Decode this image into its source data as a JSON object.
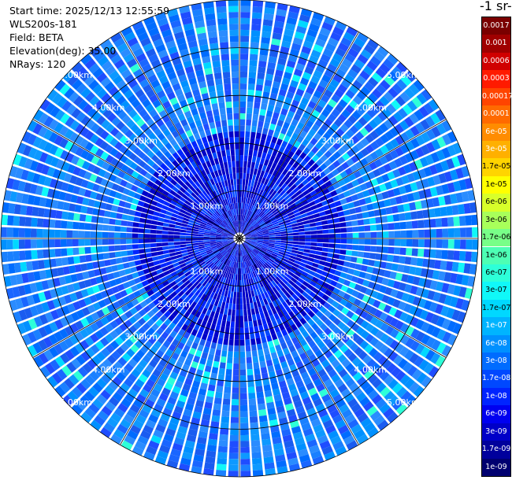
{
  "info": {
    "start_time": "Start time: 2025/12/13 12:55:59",
    "device": "WLS200s-181",
    "field": "Field: BETA",
    "elevation": "Elevation(deg): 35.00",
    "nrays": "NRays: 120"
  },
  "colorbar": {
    "unit_title": "-1 sr-",
    "labels": [
      "0.0017",
      "0.001",
      "0.0006",
      "0.0003",
      "0.00017",
      "0.0001",
      "6e-05",
      "3e-05",
      "1.7e-05",
      "1e-05",
      "6e-06",
      "3e-06",
      "1.7e-06",
      "1e-06",
      "6e-07",
      "3e-07",
      "1.7e-07",
      "1e-07",
      "6e-08",
      "3e-08",
      "1.7e-08",
      "1e-08",
      "6e-09",
      "3e-09",
      "1.7e-09",
      "1e-09"
    ],
    "colors": [
      "#7a0000",
      "#a00000",
      "#d00000",
      "#ff1a00",
      "#ff4400",
      "#ff6a00",
      "#ff8c00",
      "#ffb000",
      "#ffd400",
      "#ffff00",
      "#d8ff2a",
      "#a8ff5a",
      "#78ff88",
      "#4dffb4",
      "#2dffd8",
      "#10f8f8",
      "#00d8ff",
      "#00b4ff",
      "#0090ff",
      "#006cff",
      "#0048ff",
      "#0024ff",
      "#0000f0",
      "#0000c8",
      "#00009c",
      "#000070"
    ]
  },
  "chart_data": {
    "type": "heatmap",
    "projection": "polar PPI scan",
    "title": "",
    "nrays": 120,
    "elevation_deg": 35.0,
    "range_rings_km": [
      1,
      2,
      3,
      4,
      5
    ],
    "range_max_km": 5.0,
    "ring_labels": [
      "1.00km",
      "2.00km",
      "3.00km",
      "4.00km",
      "5.00km"
    ],
    "dominant_value_range": [
      1e-08,
      1e-07
    ],
    "grid": true
  }
}
